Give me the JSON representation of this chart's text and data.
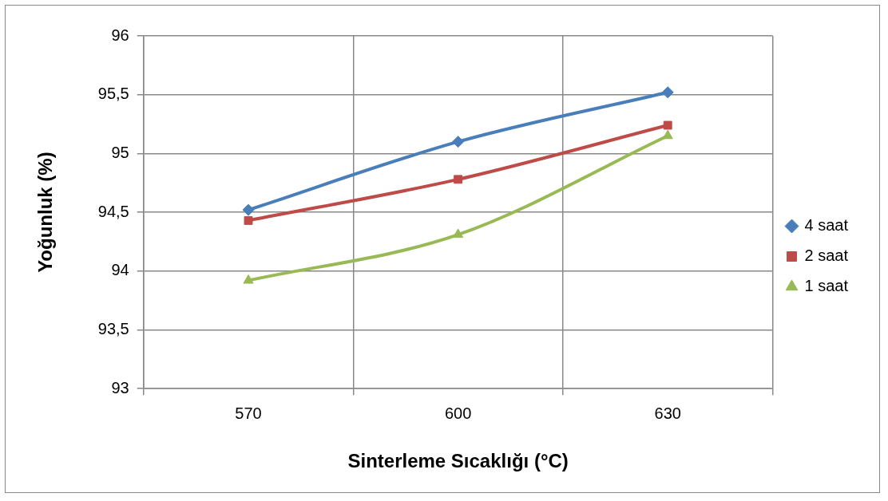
{
  "chart_data": {
    "type": "line",
    "xlabel": "Sinterleme Sıcaklığı (°C)",
    "ylabel": "Yoğunluk (%)",
    "categories": [
      "570",
      "600",
      "630"
    ],
    "series": [
      {
        "name": "4 saat",
        "color": "#4a7ebb",
        "values": [
          94.52,
          95.1,
          95.52
        ],
        "marker": "diamond"
      },
      {
        "name": "2 saat",
        "color": "#be4b48",
        "values": [
          94.43,
          94.78,
          95.24
        ],
        "marker": "square"
      },
      {
        "name": "1 saat",
        "color": "#98b954",
        "values": [
          93.92,
          94.31,
          95.15
        ],
        "marker": "triangle"
      }
    ],
    "ylim": [
      93,
      96
    ],
    "yticks": [
      {
        "value": 93,
        "label": "93"
      },
      {
        "value": 93.5,
        "label": "93,5"
      },
      {
        "value": 94,
        "label": "94"
      },
      {
        "value": 94.5,
        "label": "94,5"
      },
      {
        "value": 95,
        "label": "95"
      },
      {
        "value": 95.5,
        "label": "95,5"
      },
      {
        "value": 96,
        "label": "96"
      }
    ],
    "grid": true,
    "legend": "right",
    "line_style": "solid"
  }
}
